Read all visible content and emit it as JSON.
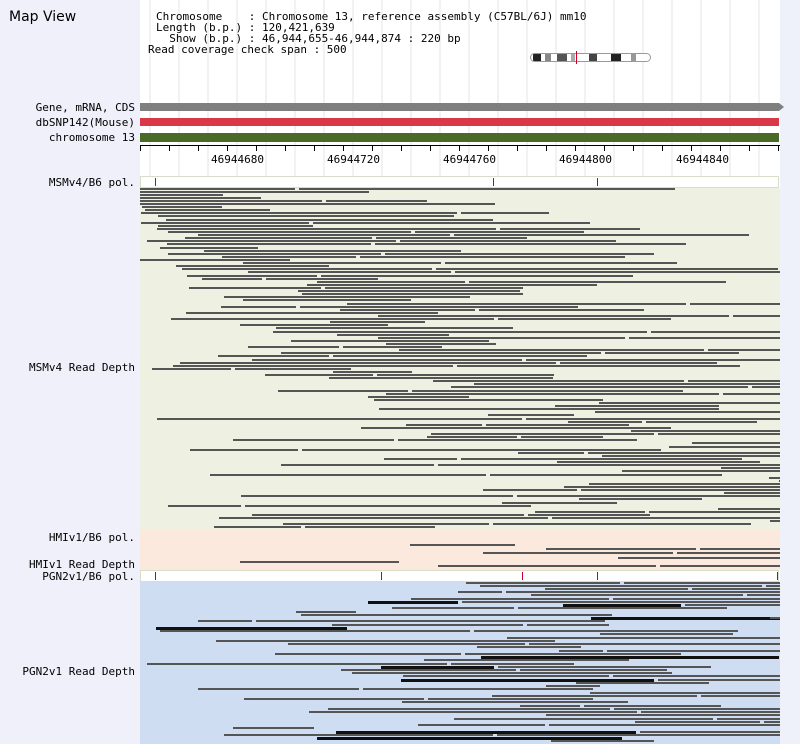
{
  "panel": {
    "title": "Map View"
  },
  "info": {
    "chromosome": "Chromosome    : Chromosome 13, reference assembly (C57BL/6J) mm10",
    "length": "Length (b.p.) : 120,421,639",
    "show": "  Show (b.p.) : 46,944,655-46,944,874 : 220 bp",
    "span": "Read coverage check span : 500"
  },
  "tracks": {
    "gene": "Gene, mRNA, CDS",
    "snp": "dbSNP142(Mouse)",
    "chrom": "chromosome 13",
    "msm_pol": "MSMv4/B6 pol.",
    "msm_depth": "MSMv4 Read Depth",
    "hmi_pol": "HMIv1/B6 pol.",
    "hmi_depth": "HMIv1 Read Depth",
    "pgn_pol": "PGN2v1/B6 pol.",
    "pgn_depth": "PGN2v1 Read Depth"
  },
  "axis": {
    "ticks": [
      "46944680",
      "46944720",
      "46944760",
      "46944800",
      "46944840"
    ]
  },
  "colors": {
    "gene": "#7f7f7f",
    "snp": "#d83848",
    "chrom": "#4a6a28",
    "msm_bg": "#eef1e2",
    "hmi_bg": "#fbe9dd",
    "pgn_bg": "#cfddf2",
    "pol_mark": "#c00030"
  }
}
